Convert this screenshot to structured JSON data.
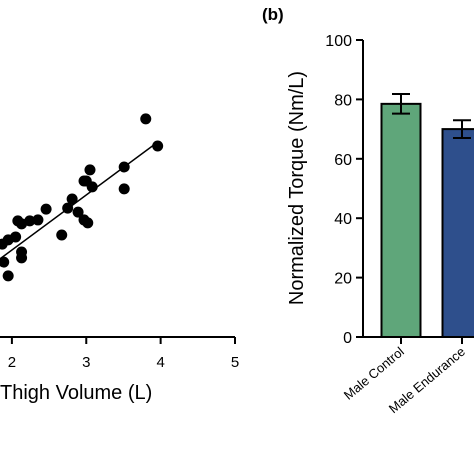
{
  "chart_data": [
    {
      "type": "scatter",
      "x_label": "Thigh Volume (L)",
      "xlim": [
        1.84,
        5
      ],
      "xticks": [
        2,
        3,
        4,
        5
      ],
      "ylim": [
        0,
        100
      ],
      "x": [
        3.8,
        3.96,
        3.51,
        3.51,
        3.05,
        3.0,
        3.08,
        2.97,
        2.81,
        2.75,
        2.89,
        2.97,
        3.02,
        2.46,
        2.35,
        2.24,
        2.08,
        2.13,
        2.05,
        2.67,
        2.13,
        2.13,
        1.95,
        1.87,
        1.89,
        1.95
      ],
      "values": [
        66.7,
        58.4,
        52.0,
        45.3,
        51.1,
        47.7,
        45.9,
        47.7,
        42.2,
        39.4,
        38.2,
        35.8,
        34.9,
        39.1,
        35.8,
        35.5,
        35.5,
        34.6,
        30.6,
        31.2,
        26.0,
        24.2,
        29.7,
        28.4,
        22.9,
        18.7
      ],
      "color": "#000000",
      "trendline": {
        "x": [
          1.84,
          3.96
        ],
        "y": [
          23.9,
          59.6
        ]
      }
    },
    {
      "type": "bar",
      "panel_label": "(b)",
      "y_label": "Normalized Torque (Nm/L)",
      "categories": [
        "Male Control",
        "Male Endurance"
      ],
      "values": [
        78.5,
        70
      ],
      "errors": [
        3.3,
        3
      ],
      "colors": [
        "#5fa67a",
        "#2e4f8c"
      ],
      "ylim": [
        0,
        100
      ],
      "yticks": [
        0,
        20,
        40,
        60,
        80,
        100
      ]
    }
  ]
}
